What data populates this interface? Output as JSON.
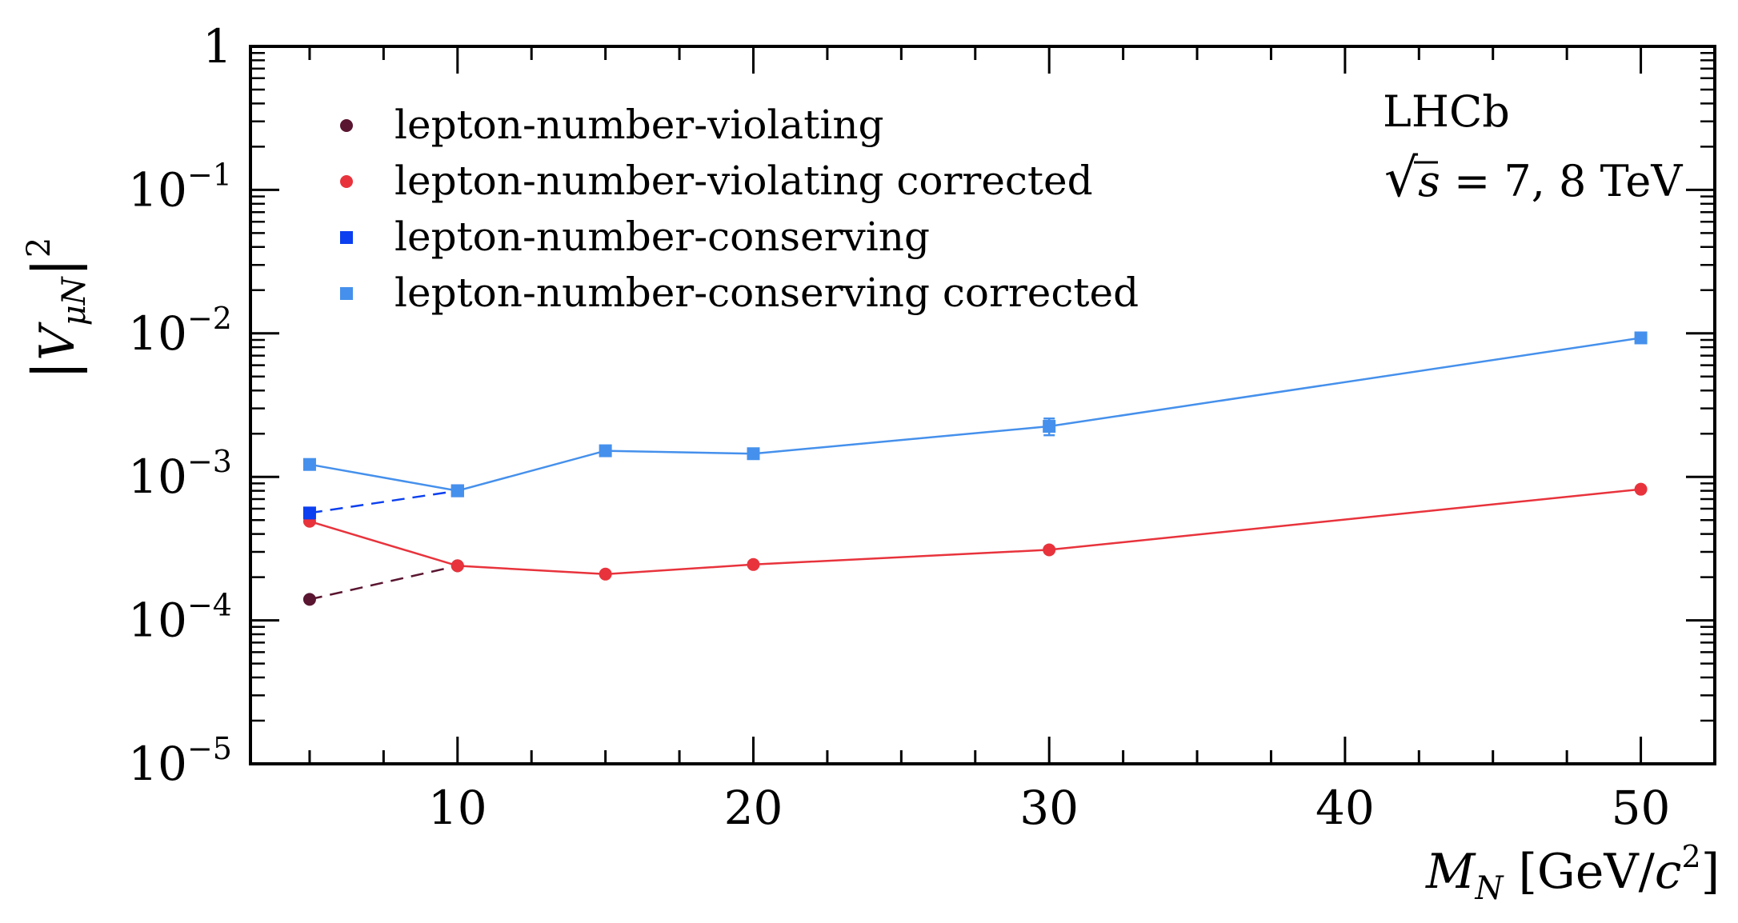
{
  "chart_data": {
    "type": "line",
    "xlabel": "M_N [GeV/c^2]",
    "ylabel": "|V_{μN}|^2",
    "x_axis": {
      "lim": [
        3,
        52.5
      ],
      "ticks": [
        10,
        20,
        30,
        40,
        50
      ],
      "tick_labels": [
        "10",
        "20",
        "30",
        "40",
        "50"
      ],
      "scale": "linear"
    },
    "y_axis": {
      "lim": [
        1e-05,
        1
      ],
      "scale": "log",
      "ticks": [
        1,
        0.1,
        0.01,
        0.001,
        0.0001,
        1e-05
      ],
      "tick_labels": [
        "1",
        "10^-1",
        "10^-2",
        "10^-3",
        "10^-4",
        "10^-5"
      ]
    },
    "grid": false,
    "legend_position": "top-left",
    "annotations": [
      "LHCb",
      "√s = 7, 8 TeV"
    ],
    "series": [
      {
        "name": "lepton-number-violating",
        "marker": "circle",
        "color": "#5a1530",
        "line": "dashed",
        "x": [
          5,
          10
        ],
        "y": [
          0.00014,
          0.00024
        ]
      },
      {
        "name": "lepton-number-violating corrected",
        "marker": "circle",
        "color": "#e8333c",
        "line": "solid",
        "x": [
          5,
          10,
          15,
          20,
          30,
          50
        ],
        "y": [
          0.00049,
          0.00024,
          0.00021,
          0.000245,
          0.00031,
          0.00082
        ]
      },
      {
        "name": "lepton-number-conserving",
        "marker": "square",
        "color": "#0b3ff0",
        "line": "dashed",
        "x": [
          5,
          10
        ],
        "y": [
          0.00056,
          0.0008
        ]
      },
      {
        "name": "lepton-number-conserving corrected",
        "marker": "square",
        "color": "#4590ec",
        "line": "solid",
        "x": [
          5,
          10,
          15,
          20,
          30,
          50
        ],
        "y": [
          0.00122,
          0.0008,
          0.00152,
          0.00145,
          0.00225,
          0.0093
        ],
        "yerr": [
          0,
          0,
          0,
          0,
          0.0003,
          0
        ]
      }
    ]
  },
  "labels": {
    "annot_experiment": "LHCb",
    "annot_sqrt": "√",
    "annot_s": "s",
    "annot_energy": " = 7, 8 TeV",
    "x_axis_main": "M",
    "x_axis_sub": "N",
    "x_axis_unit_open": " [GeV/",
    "x_axis_unit_c": "c",
    "x_axis_unit_pow": "2",
    "x_axis_unit_close": "]",
    "y_axis_bar_left": "|",
    "y_axis_main": "V",
    "y_axis_sub": "μN",
    "y_axis_bar_right": "|",
    "y_axis_pow": "2"
  },
  "colors": {
    "lnv": "#5a1530",
    "lnv_corrected": "#e8333c",
    "lnc": "#0b3ff0",
    "lnc_corrected": "#4590ec"
  }
}
